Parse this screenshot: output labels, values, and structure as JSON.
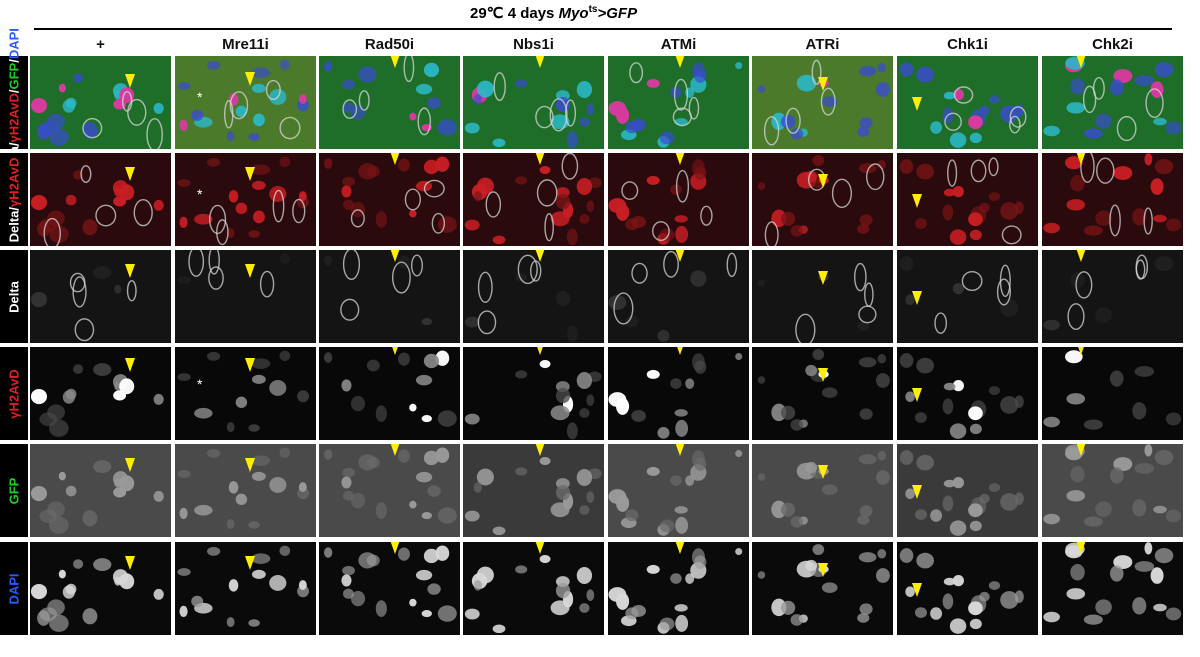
{
  "header": {
    "prefix": "29℃  4 days ",
    "genotype_italic": "Myo",
    "genotype_sup": "ts",
    "genotype_suffix": ">GFP"
  },
  "columns": [
    "+",
    "Mre11i",
    "Rad50i",
    "Nbs1i",
    "ATMi",
    "ATRi",
    "Chk1i",
    "Chk2i"
  ],
  "rows": [
    {
      "label_parts": [
        {
          "text": "Delta/",
          "color": "#ffffff"
        },
        {
          "text": "γH2AvD",
          "color": "#e02020"
        },
        {
          "text": "/",
          "color": "#ffffff"
        },
        {
          "text": "GFP",
          "color": "#22cc22"
        },
        {
          "text": "/",
          "color": "#ffffff"
        },
        {
          "text": "DAPI",
          "color": "#2a5bff"
        }
      ],
      "style": "merge4"
    },
    {
      "label_parts": [
        {
          "text": "Delta/",
          "color": "#ffffff"
        },
        {
          "text": "γH2AvD",
          "color": "#e02020"
        }
      ],
      "style": "merge2"
    },
    {
      "label_parts": [
        {
          "text": "Delta",
          "color": "#ffffff"
        }
      ],
      "style": "delta"
    },
    {
      "label_parts": [
        {
          "text": "γH2AvD",
          "color": "#e02020"
        }
      ],
      "style": "h2av"
    },
    {
      "label_parts": [
        {
          "text": "GFP",
          "color": "#22cc22"
        }
      ],
      "style": "gfp"
    },
    {
      "label_parts": [
        {
          "text": "DAPI",
          "color": "#2a5bff"
        }
      ],
      "style": "dapi"
    }
  ],
  "annotations": {
    "asterisk": "*",
    "arrowhead_color": "#ffee00"
  }
}
